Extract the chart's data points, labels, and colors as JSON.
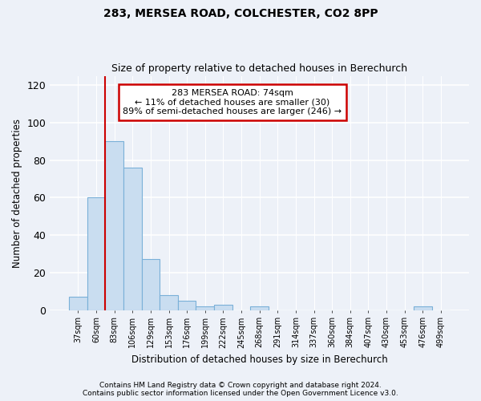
{
  "title1": "283, MERSEA ROAD, COLCHESTER, CO2 8PP",
  "title2": "Size of property relative to detached houses in Berechurch",
  "xlabel": "Distribution of detached houses by size in Berechurch",
  "ylabel": "Number of detached properties",
  "categories": [
    "37sqm",
    "60sqm",
    "83sqm",
    "106sqm",
    "129sqm",
    "153sqm",
    "176sqm",
    "199sqm",
    "222sqm",
    "245sqm",
    "268sqm",
    "291sqm",
    "314sqm",
    "337sqm",
    "360sqm",
    "384sqm",
    "407sqm",
    "430sqm",
    "453sqm",
    "476sqm",
    "499sqm"
  ],
  "values": [
    7,
    60,
    90,
    76,
    27,
    8,
    5,
    2,
    3,
    0,
    2,
    0,
    0,
    0,
    0,
    0,
    0,
    0,
    0,
    2,
    0
  ],
  "bar_color": "#c9ddf0",
  "bar_edge_color": "#7ab0d8",
  "ylim": [
    0,
    125
  ],
  "yticks": [
    0,
    20,
    40,
    60,
    80,
    100,
    120
  ],
  "property_line_x": 1.5,
  "annotation_text": "283 MERSEA ROAD: 74sqm\n← 11% of detached houses are smaller (30)\n89% of semi-detached houses are larger (246) →",
  "annotation_box_color": "white",
  "annotation_box_edge_color": "#cc0000",
  "vline_color": "#cc0000",
  "footer1": "Contains HM Land Registry data © Crown copyright and database right 2024.",
  "footer2": "Contains public sector information licensed under the Open Government Licence v3.0.",
  "bg_color": "#edf1f8",
  "grid_color": "#ffffff"
}
